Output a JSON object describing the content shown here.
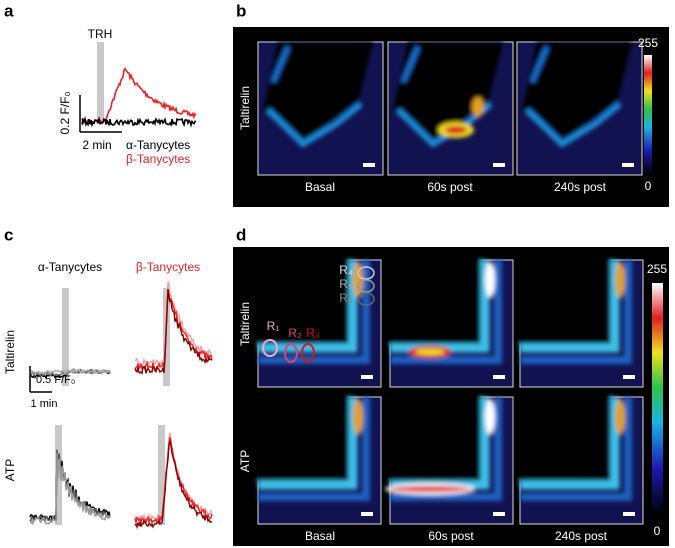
{
  "panels": {
    "a": {
      "label": "a",
      "stimulus": "TRH",
      "y_scale": "0.2 F/F₀",
      "x_scale": "2 min",
      "legend": [
        "α-Tanycytes",
        "β-Tanycytes"
      ]
    },
    "b": {
      "label": "b",
      "row_label": "Taltirelin",
      "columns": [
        "Basal",
        "60s post",
        "240s post"
      ],
      "colorbar": {
        "max": "255",
        "min": "0"
      }
    },
    "c": {
      "label": "c",
      "columns": [
        "α-Tanycytes",
        "β-Tanycytes"
      ],
      "rows": [
        "Taltirelin",
        "ATP"
      ],
      "y_scale": "0.5 F/F₀",
      "x_scale": "1 min"
    },
    "d": {
      "label": "d",
      "rows": [
        "Taltirelin",
        "ATP"
      ],
      "columns": [
        "Basal",
        "60s post",
        "240s post"
      ],
      "colorbar": {
        "max": "255",
        "min": "0"
      },
      "rois": [
        "R₁",
        "R₂",
        "R₃",
        "R₄",
        "R₅",
        "R₆"
      ]
    }
  }
}
